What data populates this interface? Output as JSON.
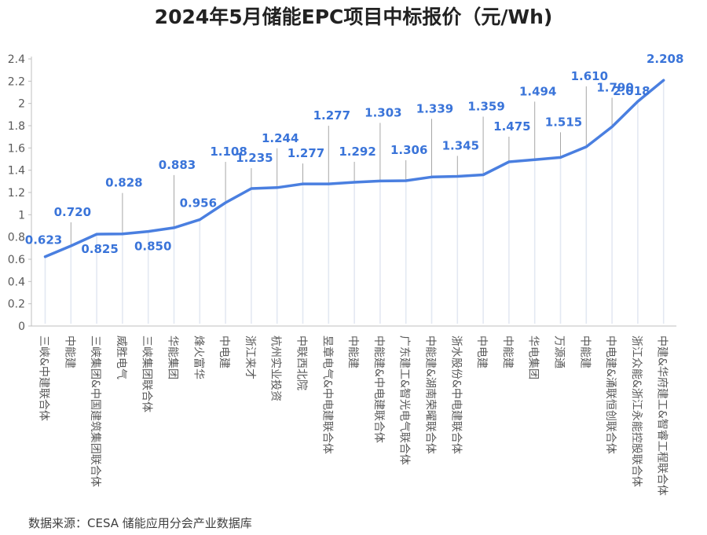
{
  "chart_data": {
    "type": "line",
    "title": "2024年5月储能EPC项目中标报价（元/Wh)",
    "xlabel": "",
    "ylabel": "",
    "ylim": [
      0,
      2.4
    ],
    "y_ticks": [
      "0",
      "0.2",
      "0.4",
      "0.6",
      "0.8",
      "1",
      "1.2",
      "1.4",
      "1.6",
      "1.8",
      "2",
      "2.2",
      "2.4"
    ],
    "grid": false,
    "legend": "none",
    "categories": [
      "三峡&中建联合体",
      "中能建",
      "三峡集团&中国建筑集团联合体",
      "威胜电气",
      "三峡集团联合体",
      "华能集团",
      "烽火富华",
      "中电建",
      "浙江来才",
      "杭州实业投资",
      "中联西北院",
      "昱章电气&中电建联合体",
      "中能建",
      "中能建&中电建联合体",
      "广东建工&智光电气联合体",
      "中能建&湖南荣曜联合体",
      "浙水股份&中电建联合体",
      "中电建",
      "中能建",
      "华电集团",
      "万源通",
      "中能建",
      "中电建&涌联恒创联合体",
      "浙江众能&浙江永能控股联合体",
      "中建&华府建工&智睿工程联合体"
    ],
    "series": [
      {
        "values": [
          0.623,
          0.72,
          0.825,
          0.828,
          0.85,
          0.883,
          0.956,
          1.108,
          1.235,
          1.244,
          1.277,
          1.277,
          1.292,
          1.303,
          1.306,
          1.339,
          1.345,
          1.359,
          1.475,
          1.494,
          1.515,
          1.61,
          1.79,
          2.018,
          2.208
        ],
        "data_labels": [
          "0.623",
          "0.720",
          "0.825",
          "0.828",
          "0.850",
          "0.883",
          "0.956",
          "1.108",
          "1.235",
          "1.244",
          "1.277",
          "1.277",
          "1.292",
          "1.303",
          "1.306",
          "1.339",
          "1.345",
          "1.359",
          "1.475",
          "1.494",
          "1.515",
          "1.610",
          "1.790",
          "2.018",
          "2.208"
        ]
      }
    ],
    "colors": {
      "line": "#4A7FE0",
      "label": "#3A74D9",
      "leader": "#A6A6A6",
      "axis": "#BFBFBF",
      "tick_text": "#595959"
    }
  },
  "source_note": "数据来源：CESA 储能应用分会产业数据库"
}
